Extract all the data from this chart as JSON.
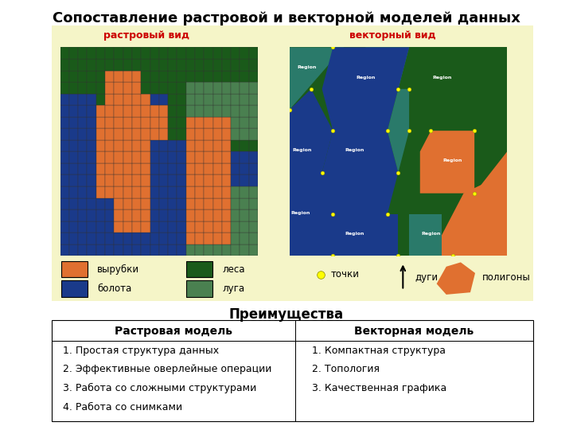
{
  "title": "Сопоставление растровой и векторной моделей данных",
  "title_fontsize": 13,
  "bg_color": "#f5f5c8",
  "raster_label": "растровый вид",
  "vector_label": "векторный вид",
  "label_color": "#cc0000",
  "orange": "#e07030",
  "blue": "#1a3a8a",
  "dkgreen": "#1a5a1a",
  "mdgreen": "#4a8050",
  "teal": "#2a7a6a",
  "legend_items": [
    {
      "label": "вырубки",
      "color": "#e07030"
    },
    {
      "label": "леса",
      "color": "#1a5a1a"
    },
    {
      "label": "болота",
      "color": "#1a3a8a"
    },
    {
      "label": "луга",
      "color": "#4a8050"
    }
  ],
  "advantages_title": "Преимущества",
  "col1_header": "Растровая модель",
  "col2_header": "Векторная модель",
  "col1_items": [
    "1. Простая структура данных",
    "2. Эффективные оверлейные операции",
    "3. Работа со сложными структурами",
    "4. Работа со снимками"
  ],
  "col2_items": [
    "1. Компактная структура",
    "2. Топология",
    "3. Качественная графика"
  ]
}
